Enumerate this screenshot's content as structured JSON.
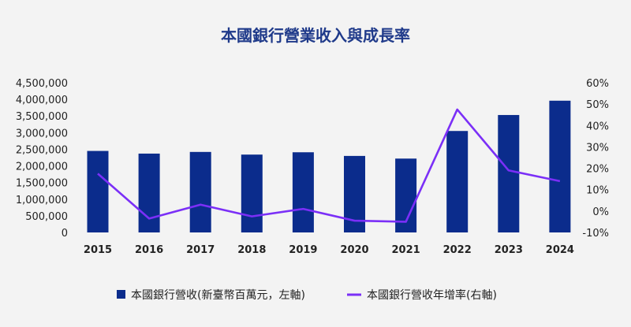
{
  "chart_data": {
    "type": "bar",
    "title": "本國銀行營業收入與成長率",
    "categories": [
      "2015",
      "2016",
      "2017",
      "2018",
      "2019",
      "2020",
      "2021",
      "2022",
      "2023",
      "2024"
    ],
    "series": [
      {
        "name": "本國銀行營收(新臺幣百萬元，左軸)",
        "type": "bar",
        "axis": "left",
        "values": [
          2450000,
          2370000,
          2420000,
          2340000,
          2410000,
          2300000,
          2220000,
          3050000,
          3530000,
          3960000
        ]
      },
      {
        "name": "本國銀行營收年增率(右軸)",
        "type": "line",
        "axis": "right",
        "values": [
          17.5,
          -3.5,
          3.0,
          -2.5,
          1.0,
          -4.5,
          -5.0,
          47.5,
          19.0,
          14.0
        ]
      }
    ],
    "y_left": {
      "ylim": [
        0,
        4500000
      ],
      "ticks": [
        "4,500,000",
        "4,000,000",
        "3,500,000",
        "3,000,000",
        "2,500,000",
        "2,000,000",
        "1,500,000",
        "1,000,000",
        "500,000",
        "0"
      ]
    },
    "y_right": {
      "ylim": [
        -10,
        60
      ],
      "ticks": [
        "60%",
        "50%",
        "40%",
        "30%",
        "20%",
        "10%",
        "0%",
        "-10%"
      ]
    },
    "grid": false,
    "legend_position": "bottom",
    "colors": {
      "bar": "#0b2c8c",
      "line": "#7b2ff7",
      "title": "#1f3a8a"
    }
  }
}
